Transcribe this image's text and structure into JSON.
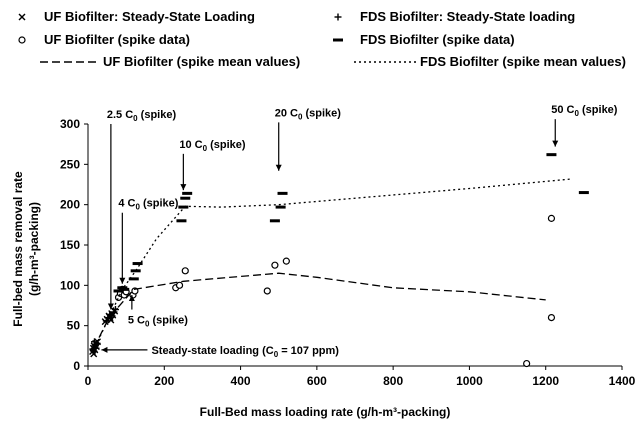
{
  "chart_data": {
    "type": "scatter",
    "xlabel": "Full-Bed mass loading rate (g/h-m³-packing)",
    "ylabel_line1": "Full-bed mass removal rate",
    "ylabel_line2": "(g/h-m³-packing)",
    "xlim": [
      0,
      1400
    ],
    "ylim": [
      0,
      300
    ],
    "xticks": [
      0,
      200,
      400,
      600,
      800,
      1000,
      1200,
      1400
    ],
    "yticks": [
      0,
      50,
      100,
      150,
      200,
      250,
      300
    ],
    "grid": false,
    "legend": [
      {
        "marker": "x",
        "label": "UF Biofilter: Steady-State Loading"
      },
      {
        "marker": "+",
        "label": "FDS Biofilter: Steady-State loading"
      },
      {
        "marker": "circle",
        "label": "UF Biofilter (spike data)"
      },
      {
        "marker": "dash",
        "label": "FDS Biofilter (spike data)"
      },
      {
        "marker": "dashed-line",
        "label": "UF Biofilter (spike mean values)"
      },
      {
        "marker": "dotted-line",
        "label": "FDS Biofilter (spike mean values)"
      }
    ],
    "series": [
      {
        "name": "UF Biofilter: Steady-State Loading",
        "marker": "x",
        "points": [
          [
            12,
            18
          ],
          [
            14,
            22
          ],
          [
            16,
            25
          ],
          [
            18,
            20
          ],
          [
            20,
            28
          ],
          [
            15,
            15
          ],
          [
            22,
            24
          ],
          [
            25,
            30
          ],
          [
            45,
            55
          ],
          [
            50,
            58
          ],
          [
            55,
            62
          ],
          [
            58,
            60
          ],
          [
            62,
            65
          ],
          [
            65,
            63
          ],
          [
            70,
            68
          ],
          [
            60,
            57
          ]
        ]
      },
      {
        "name": "FDS Biofilter: Steady-State loading",
        "marker": "+",
        "points": [
          [
            13,
            20
          ],
          [
            16,
            18
          ],
          [
            19,
            26
          ],
          [
            21,
            22
          ],
          [
            24,
            28
          ],
          [
            17,
            30
          ],
          [
            48,
            56
          ],
          [
            52,
            60
          ],
          [
            57,
            64
          ],
          [
            63,
            62
          ],
          [
            68,
            67
          ],
          [
            72,
            70
          ]
        ]
      },
      {
        "name": "UF Biofilter (spike data)",
        "marker": "circle",
        "points": [
          [
            80,
            85
          ],
          [
            85,
            90
          ],
          [
            90,
            95
          ],
          [
            95,
            88
          ],
          [
            100,
            92
          ],
          [
            118,
            88
          ],
          [
            123,
            93
          ],
          [
            230,
            97
          ],
          [
            240,
            100
          ],
          [
            255,
            118
          ],
          [
            470,
            93
          ],
          [
            490,
            125
          ],
          [
            520,
            130
          ],
          [
            1150,
            3
          ],
          [
            1215,
            60
          ],
          [
            1215,
            183
          ]
        ]
      },
      {
        "name": "FDS Biofilter (spike data)",
        "marker": "dash",
        "points": [
          [
            80,
            93
          ],
          [
            90,
            97
          ],
          [
            95,
            95
          ],
          [
            120,
            108
          ],
          [
            125,
            118
          ],
          [
            130,
            127
          ],
          [
            245,
            180
          ],
          [
            250,
            197
          ],
          [
            255,
            208
          ],
          [
            260,
            214
          ],
          [
            490,
            180
          ],
          [
            505,
            197
          ],
          [
            510,
            214
          ],
          [
            1215,
            262
          ],
          [
            1300,
            215
          ]
        ]
      },
      {
        "name": "UF Biofilter (spike mean values)",
        "style": "dashed",
        "points": [
          [
            15,
            22
          ],
          [
            55,
            60
          ],
          [
            120,
            95
          ],
          [
            250,
            105
          ],
          [
            500,
            115
          ],
          [
            600,
            110
          ],
          [
            800,
            97
          ],
          [
            1000,
            92
          ],
          [
            1200,
            82
          ]
        ]
      },
      {
        "name": "FDS Biofilter (spike mean values)",
        "style": "dotted",
        "points": [
          [
            15,
            20
          ],
          [
            55,
            60
          ],
          [
            90,
            95
          ],
          [
            125,
            118
          ],
          [
            180,
            158
          ],
          [
            255,
            198
          ],
          [
            350,
            197
          ],
          [
            500,
            200
          ],
          [
            1000,
            220
          ],
          [
            1270,
            232
          ]
        ]
      }
    ],
    "annotations": [
      {
        "main": "2.5 C",
        "sub": "0",
        "suffix": " (spike)",
        "x": 60,
        "ytop": 300,
        "ytip": 70
      },
      {
        "main": "4 C",
        "sub": "0",
        "suffix": " (spike)",
        "x": 90,
        "ytop": 190,
        "ytip": 102
      },
      {
        "main": "10 C",
        "sub": "0",
        "suffix": " (spike)",
        "x": 250,
        "ytop": 263,
        "ytip": 218
      },
      {
        "main": "20 C",
        "sub": "0",
        "suffix": " (spike)",
        "x": 500,
        "ytop": 302,
        "ytip": 242
      },
      {
        "main": "50 C",
        "sub": "0",
        "suffix": " (spike)",
        "x": 1225,
        "ytop": 306,
        "ytip": 272
      },
      {
        "main": "5 C",
        "sub": "0",
        "suffix": " (spike)",
        "x": 115,
        "ytop": 70,
        "ytip": 88,
        "up": true
      },
      {
        "main": "Steady-state loading (C",
        "sub": "0",
        "suffix": " = 107 ppm)",
        "x": 30,
        "ytop": 20,
        "ytip": 20,
        "left": true
      }
    ]
  }
}
